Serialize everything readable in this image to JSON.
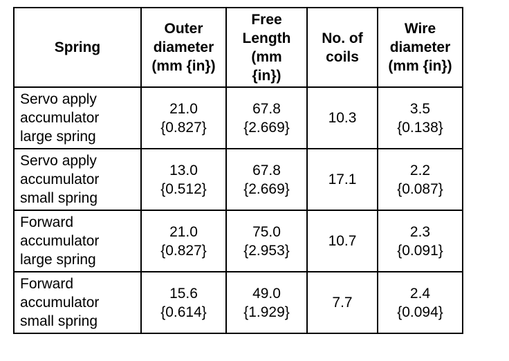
{
  "table": {
    "header": [
      [
        "Spring"
      ],
      [
        "Outer",
        "diameter",
        "(mm {in})"
      ],
      [
        "Free",
        "Length",
        "(mm",
        "{in})"
      ],
      [
        "No. of",
        "coils"
      ],
      [
        "Wire",
        "diameter",
        "(mm {in})"
      ]
    ],
    "rows": [
      [
        [
          "Servo apply",
          "accumulator",
          "large spring"
        ],
        [
          "21.0",
          "{0.827}"
        ],
        [
          "67.8",
          "{2.669}"
        ],
        [
          "10.3"
        ],
        [
          "3.5",
          "{0.138}"
        ]
      ],
      [
        [
          "Servo apply",
          "accumulator",
          "small spring"
        ],
        [
          "13.0",
          "{0.512}"
        ],
        [
          "67.8",
          "{2.669}"
        ],
        [
          "17.1"
        ],
        [
          "2.2",
          "{0.087}"
        ]
      ],
      [
        [
          "Forward",
          "accumulator",
          "large spring"
        ],
        [
          "21.0",
          "{0.827}"
        ],
        [
          "75.0",
          "{2.953}"
        ],
        [
          "10.7"
        ],
        [
          "2.3",
          "{0.091}"
        ]
      ],
      [
        [
          "Forward",
          "accumulator",
          "small spring"
        ],
        [
          "15.6",
          "{0.614}"
        ],
        [
          "49.0",
          "{1.929}"
        ],
        [
          "7.7"
        ],
        [
          "2.4",
          "{0.094}"
        ]
      ]
    ]
  }
}
